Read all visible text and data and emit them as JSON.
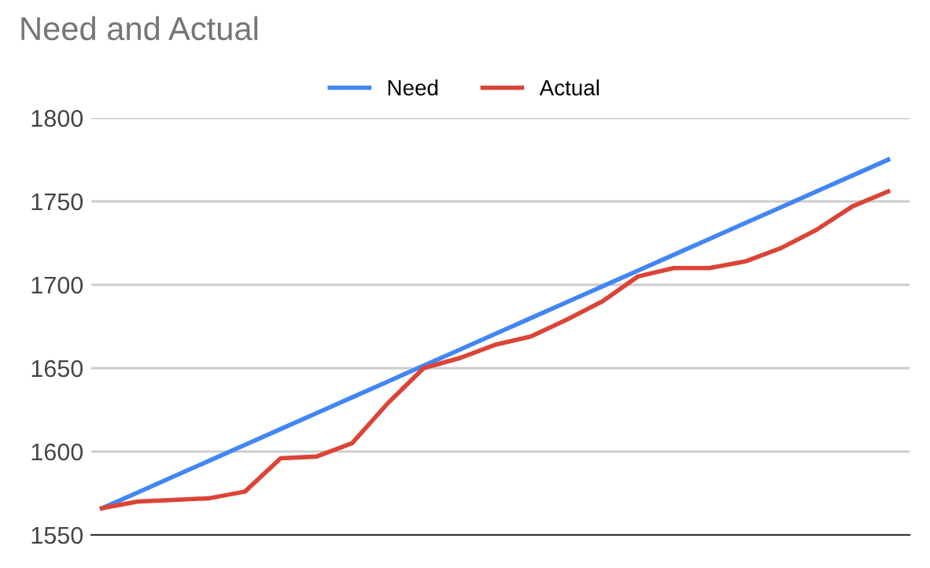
{
  "chart_data": {
    "type": "line",
    "title": "Need and Actual",
    "categories": [
      null,
      null,
      null,
      null,
      null,
      null,
      null,
      null,
      null,
      null,
      null,
      null,
      null,
      null,
      null,
      null,
      null,
      null,
      null,
      null,
      null,
      null,
      null
    ],
    "series": [
      {
        "name": "Need",
        "color": "#4285f4",
        "values": [
          1566,
          1575.5,
          1585,
          1594.5,
          1604,
          1613.5,
          1623,
          1632.5,
          1642,
          1651.5,
          1661,
          1670.5,
          1680,
          1689.5,
          1699,
          1708.5,
          1718,
          1727.5,
          1737,
          1746.5,
          1756,
          1765.5,
          1775
        ]
      },
      {
        "name": "Actual",
        "color": "#db4437",
        "values": [
          1566,
          1570,
          1571,
          1572,
          1576,
          1596,
          1597,
          1605,
          1629,
          1650,
          1656,
          1664,
          1669,
          1679,
          1690,
          1705,
          1710,
          1710,
          1714,
          1722,
          1733,
          1747,
          1756
        ]
      }
    ],
    "ylim": [
      1550,
      1800
    ],
    "yticks": [
      1550,
      1600,
      1650,
      1700,
      1750,
      1800
    ],
    "grid": "y",
    "legend": "top",
    "marker": "none",
    "line_style": "solid",
    "tick_labels": "y"
  }
}
